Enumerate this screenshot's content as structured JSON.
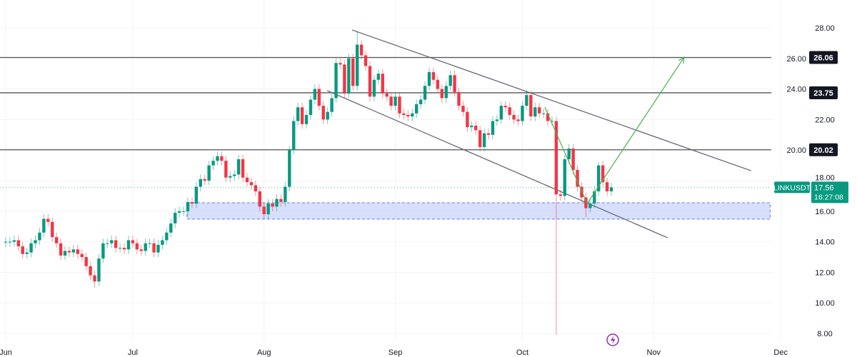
{
  "chart_data": {
    "type": "candlestick",
    "symbol": "LINKUSDT",
    "interval": "1D",
    "first_candle_date": "Jun 1",
    "open_rule": "open equals previous close",
    "default_wick": 0.3,
    "closes": [
      14.0,
      14.0,
      14.1,
      13.7,
      13.2,
      13.3,
      13.9,
      14.1,
      14.6,
      15.5,
      15.3,
      14.3,
      13.9,
      13.1,
      13.4,
      13.3,
      13.5,
      13.2,
      13.0,
      12.4,
      11.8,
      11.4,
      12.9,
      13.9,
      13.9,
      14.1,
      13.6,
      13.6,
      13.5,
      14.1,
      13.9,
      13.5,
      13.4,
      13.9,
      13.9,
      13.3,
      13.8,
      14.1,
      14.6,
      15.2,
      15.9,
      16.0,
      16.0,
      16.6,
      16.5,
      17.6,
      18.1,
      18.0,
      19.0,
      19.3,
      19.6,
      19.3,
      18.2,
      18.3,
      18.4,
      19.4,
      18.2,
      17.9,
      17.7,
      17.3,
      16.3,
      15.8,
      16.5,
      16.3,
      16.8,
      16.6,
      17.6,
      20.0,
      21.9,
      22.8,
      21.7,
      22.3,
      23.3,
      24.0,
      22.9,
      22.0,
      22.5,
      23.4,
      25.7,
      25.6,
      23.7,
      26.0,
      24.2,
      26.9,
      26.2,
      25.5,
      23.5,
      24.6,
      25.0,
      23.7,
      23.5,
      22.9,
      23.5,
      22.4,
      22.3,
      22.2,
      22.4,
      23.0,
      23.3,
      24.2,
      25.1,
      24.6,
      24.0,
      23.4,
      24.2,
      24.9,
      23.8,
      22.9,
      22.5,
      21.5,
      21.6,
      21.3,
      20.2,
      21.1,
      21.0,
      21.9,
      22.0,
      22.9,
      22.8,
      22.3,
      22.0,
      21.9,
      22.9,
      23.6,
      22.2,
      22.8,
      22.4,
      22.4,
      21.9,
      21.9,
      17.1,
      17.0,
      19.4,
      20.1,
      18.7,
      17.6,
      16.9,
      16.2,
      16.5,
      17.3,
      19.0,
      17.9,
      17.3,
      17.56
    ],
    "wick_overrides": {
      "21": {
        "low": 11.0
      },
      "83": {
        "high": 27.8
      },
      "130": {
        "low": 7.9
      },
      "137": {
        "low": 15.6
      },
      "140": {
        "high": 19.2
      }
    },
    "y_axis": {
      "ticks": [
        28,
        26,
        24,
        22,
        20,
        18,
        16,
        14,
        12,
        10,
        8
      ],
      "ylim": [
        7.5,
        29.5
      ]
    },
    "x_axis": {
      "ticks": [
        {
          "label": "Jun",
          "day": 0
        },
        {
          "label": "Jul",
          "day": 30
        },
        {
          "label": "Aug",
          "day": 61
        },
        {
          "label": "Sep",
          "day": 92
        },
        {
          "label": "Oct",
          "day": 122
        },
        {
          "label": "Nov",
          "day": 153
        },
        {
          "label": "Dec",
          "day": 183
        }
      ]
    },
    "horizontal_levels": [
      {
        "price": 26.06,
        "label": "26.06"
      },
      {
        "price": 23.75,
        "label": "23.75"
      },
      {
        "price": 20.02,
        "label": "20.02"
      }
    ],
    "channel": {
      "upper": [
        {
          "day": 81.8,
          "price": 27.86
        },
        {
          "day": 176,
          "price": 18.65
        }
      ],
      "lower": [
        {
          "day": 75.9,
          "price": 23.89
        },
        {
          "day": 156.3,
          "price": 14.26
        }
      ]
    },
    "projection_path": [
      {
        "day": 127.3,
        "price": 22.81
      },
      {
        "day": 137.3,
        "price": 16.5
      },
      {
        "day": 160.2,
        "price": 26.08
      }
    ],
    "support_zone": {
      "day_start": 42.8,
      "day_end": 180.5,
      "price_top": 16.55,
      "price_bottom": 15.48
    },
    "last_price": {
      "value": 17.56,
      "label": "17.56",
      "countdown": "16:27:08",
      "symbol_label": "LINKUSDT"
    },
    "tick_labels": [
      "28.00",
      "26.00",
      "24.00",
      "22.00",
      "20.00",
      "18.00",
      "16.00",
      "14.00",
      "12.00",
      "10.00",
      "8.00"
    ]
  },
  "colors": {
    "up": "#089981",
    "down": "#f23645",
    "zone": "#c9d4fb",
    "zone_border": "#5b7cf0",
    "projection": "#4caf50",
    "level": "#555555",
    "label_bg": "#131722",
    "last_price_bg": "#089981",
    "event_icon": "#9c27b0"
  },
  "icons": {
    "event": "lightning-icon"
  }
}
